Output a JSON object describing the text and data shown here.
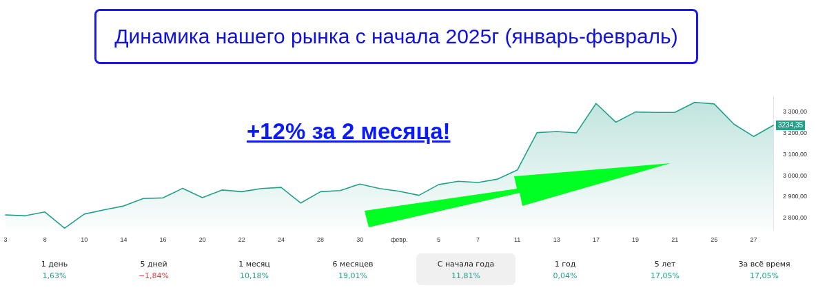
{
  "chart_data": {
    "type": "area",
    "title": "Динамика нашего рынка с начала 2025г (январь-февраль)",
    "categories": [
      "3",
      null,
      "8",
      null,
      "10",
      null,
      "14",
      null,
      "16",
      null,
      "20",
      null,
      "22",
      null,
      "24",
      null,
      "28",
      null,
      "30",
      null,
      "февр.",
      null,
      "5",
      null,
      "7",
      null,
      "11",
      null,
      "13",
      null,
      "17",
      null,
      "19",
      null,
      "21",
      null,
      "25",
      null,
      "27",
      null
    ],
    "series": [
      {
        "color": "#22a08a",
        "values": [
          2814,
          2810,
          2828,
          2752,
          2818,
          2838,
          2856,
          2891,
          2894,
          2939,
          2895,
          2931,
          2923,
          2938,
          2943,
          2870,
          2923,
          2928,
          2959,
          2938,
          2925,
          2906,
          2956,
          2972,
          2966,
          2982,
          3025,
          3200,
          3205,
          3199,
          3337,
          3249,
          3297,
          3295,
          3295,
          3342,
          3335,
          3240,
          3182,
          3234.35
        ],
        "value_labels": [
          null,
          null,
          null,
          null,
          null,
          null,
          null,
          null,
          null,
          null,
          null,
          null,
          null,
          null,
          null,
          null,
          null,
          null,
          null,
          null,
          null,
          null,
          null,
          null,
          null,
          null,
          null,
          null,
          null,
          null,
          null,
          null,
          null,
          null,
          null,
          null,
          null,
          null,
          null,
          "3234,35"
        ]
      }
    ],
    "ylim": [
      2740,
      3370
    ],
    "yticks": [
      {
        "value": 2800,
        "label": "2 800,00"
      },
      {
        "value": 2900,
        "label": "2 900,00"
      },
      {
        "value": 3000,
        "label": "3 000,00"
      },
      {
        "value": 3100,
        "label": "3 100,00"
      },
      {
        "value": 3200,
        "label": "3 200,00"
      },
      {
        "value": 3300,
        "label": "3 300,00"
      }
    ],
    "grid": false,
    "marker": "none",
    "line_style": "solid",
    "annotations": [
      "+12% за 2 месяца!",
      "1 день",
      "1,63%",
      "5 дней",
      "−1,84%",
      "1 месяц",
      "10,18%",
      "6 месяцев",
      "19,01%",
      "С начала года",
      "11,81%",
      "1 год",
      "0,04%",
      "5 лет",
      "17,05%",
      "За всё время",
      "17,05%"
    ]
  }
}
